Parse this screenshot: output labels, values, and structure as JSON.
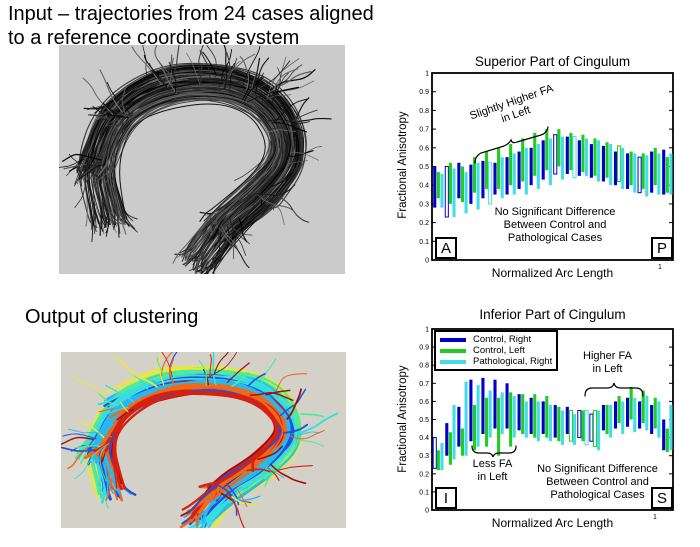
{
  "header": {
    "title": "Input – trajectories from 24 cases aligned\nto a reference coordinate system"
  },
  "clustering": {
    "label": "Output of clustering"
  },
  "images": {
    "input_fibers": {
      "name": "input-fiber-tracts",
      "background": "#cbcbcb"
    },
    "clustered_fibers": {
      "name": "clustered-fiber-tracts",
      "background": "#d4d2c8",
      "cluster_palette": [
        "#a01010",
        "#d82010",
        "#f06818",
        "#28b8ee",
        "#2050e0",
        "#38dede",
        "#52e89e",
        "#e8e83c"
      ]
    }
  },
  "chart_data": [
    {
      "type": "bar",
      "title": "Superior Part of Cingulum",
      "ylabel": "Fractional Anisotropy",
      "xlabel": "Normalized Arc Length",
      "ylim": [
        0,
        1
      ],
      "ytick_labels": [
        "0",
        "0.1",
        "0.2",
        "0.3",
        "0.4",
        "0.5",
        "0.6",
        "0.7",
        "0.8",
        "0.9",
        "1"
      ],
      "xtick_label": "1",
      "corner_left": "A",
      "corner_right": "P",
      "grid": false,
      "legend_shown": false,
      "series": [
        {
          "name": "Control, Right",
          "color": "#0000CC"
        },
        {
          "name": "Control, Left",
          "color": "#22CC22"
        },
        {
          "name": "Pathological, Right",
          "color": "#44DDE6"
        }
      ],
      "groups_note": "each group = [low,high,(0=hollow)] FA range for Control-Right, Control-Left, Pathological-Right",
      "groups": [
        [
          [
            0.28,
            0.5
          ],
          [
            0.33,
            0.47
          ],
          [
            0.28,
            0.46
          ]
        ],
        [
          [
            0.23,
            0.5,
            0
          ],
          [
            0.3,
            0.52
          ],
          [
            0.23,
            0.49
          ]
        ],
        [
          [
            0.33,
            0.52
          ],
          [
            0.31,
            0.5
          ],
          [
            0.25,
            0.47
          ]
        ],
        [
          [
            0.3,
            0.51
          ],
          [
            0.36,
            0.55
          ],
          [
            0.27,
            0.52
          ]
        ],
        [
          [
            0.33,
            0.53
          ],
          [
            0.38,
            0.58
          ],
          [
            0.3,
            0.52,
            0
          ]
        ],
        [
          [
            0.35,
            0.52
          ],
          [
            0.38,
            0.6
          ],
          [
            0.33,
            0.55
          ]
        ],
        [
          [
            0.35,
            0.55
          ],
          [
            0.4,
            0.62
          ],
          [
            0.35,
            0.57
          ]
        ],
        [
          [
            0.38,
            0.58
          ],
          [
            0.42,
            0.65
          ],
          [
            0.35,
            0.6
          ]
        ],
        [
          [
            0.4,
            0.6
          ],
          [
            0.45,
            0.68
          ],
          [
            0.38,
            0.62
          ]
        ],
        [
          [
            0.43,
            0.64
          ],
          [
            0.48,
            0.7
          ],
          [
            0.4,
            0.65
          ]
        ],
        [
          [
            0.46,
            0.67,
            0
          ],
          [
            0.5,
            0.7
          ],
          [
            0.43,
            0.66
          ]
        ],
        [
          [
            0.46,
            0.66
          ],
          [
            0.48,
            0.68
          ],
          [
            0.44,
            0.66,
            0
          ]
        ],
        [
          [
            0.45,
            0.64
          ],
          [
            0.47,
            0.67
          ],
          [
            0.45,
            0.65
          ]
        ],
        [
          [
            0.44,
            0.62
          ],
          [
            0.45,
            0.65
          ],
          [
            0.42,
            0.64
          ]
        ],
        [
          [
            0.42,
            0.61
          ],
          [
            0.44,
            0.63
          ],
          [
            0.4,
            0.62
          ]
        ],
        [
          [
            0.4,
            0.58
          ],
          [
            0.42,
            0.61,
            0
          ],
          [
            0.38,
            0.6
          ]
        ],
        [
          [
            0.38,
            0.57
          ],
          [
            0.4,
            0.58
          ],
          [
            0.36,
            0.57
          ]
        ],
        [
          [
            0.36,
            0.55,
            0
          ],
          [
            0.38,
            0.57
          ],
          [
            0.34,
            0.56
          ]
        ],
        [
          [
            0.36,
            0.58
          ],
          [
            0.4,
            0.6
          ],
          [
            0.35,
            0.57
          ]
        ],
        [
          [
            0.35,
            0.59
          ],
          [
            0.36,
            0.55
          ],
          [
            0.35,
            0.57
          ]
        ]
      ],
      "annotations": {
        "slight": "Slightly Higher FA\nin Left",
        "nosig": "No Significant Difference\nBetween Control and\nPathological Cases"
      }
    },
    {
      "type": "bar",
      "title": "Inferior Part of Cingulum",
      "ylabel": "Fractional Anisotropy",
      "xlabel": "Normalized Arc Length",
      "ylim": [
        0,
        1
      ],
      "ytick_labels": [
        "0",
        "0.1",
        "0.2",
        "0.3",
        "0.4",
        "0.5",
        "0.6",
        "0.7",
        "0.8",
        "0.9",
        "1"
      ],
      "xtick_label": "1",
      "corner_left": "I",
      "corner_right": "S",
      "grid": false,
      "legend_shown": true,
      "series": [
        {
          "name": "Control, Right",
          "color": "#0000CC"
        },
        {
          "name": "Control, Left",
          "color": "#22CC22"
        },
        {
          "name": "Pathological, Right",
          "color": "#44DDE6"
        }
      ],
      "groups": [
        [
          [
            0.23,
            0.4,
            0
          ],
          [
            0.22,
            0.33
          ],
          [
            0.22,
            0.37
          ]
        ],
        [
          [
            0.3,
            0.48
          ],
          [
            0.25,
            0.43
          ],
          [
            0.28,
            0.58
          ]
        ],
        [
          [
            0.35,
            0.57
          ],
          [
            0.3,
            0.45
          ],
          [
            0.3,
            0.71
          ]
        ],
        [
          [
            0.38,
            0.72
          ],
          [
            0.33,
            0.58
          ],
          [
            0.35,
            0.69
          ]
        ],
        [
          [
            0.42,
            0.73
          ],
          [
            0.35,
            0.62
          ],
          [
            0.4,
            0.66
          ]
        ],
        [
          [
            0.45,
            0.72
          ],
          [
            0.3,
            0.62
          ],
          [
            0.42,
            0.65
          ]
        ],
        [
          [
            0.45,
            0.7
          ],
          [
            0.35,
            0.65
          ],
          [
            0.4,
            0.63
          ]
        ],
        [
          [
            0.44,
            0.64
          ],
          [
            0.42,
            0.64
          ],
          [
            0.4,
            0.6
          ]
        ],
        [
          [
            0.42,
            0.62
          ],
          [
            0.4,
            0.64
          ],
          [
            0.38,
            0.6
          ]
        ],
        [
          [
            0.42,
            0.6
          ],
          [
            0.4,
            0.63
          ],
          [
            0.38,
            0.58
          ]
        ],
        [
          [
            0.4,
            0.58
          ],
          [
            0.38,
            0.57
          ],
          [
            0.36,
            0.55
          ]
        ],
        [
          [
            0.42,
            0.57
          ],
          [
            0.38,
            0.55,
            0
          ],
          [
            0.36,
            0.53
          ]
        ],
        [
          [
            0.4,
            0.55,
            0
          ],
          [
            0.38,
            0.55
          ],
          [
            0.36,
            0.55,
            0
          ]
        ],
        [
          [
            0.38,
            0.53,
            0
          ],
          [
            0.35,
            0.55,
            0
          ],
          [
            0.33,
            0.55
          ]
        ],
        [
          [
            0.44,
            0.58
          ],
          [
            0.42,
            0.58
          ],
          [
            0.4,
            0.58
          ]
        ],
        [
          [
            0.45,
            0.6
          ],
          [
            0.48,
            0.63
          ],
          [
            0.42,
            0.6
          ]
        ],
        [
          [
            0.46,
            0.62
          ],
          [
            0.5,
            0.68
          ],
          [
            0.43,
            0.62
          ]
        ],
        [
          [
            0.45,
            0.6
          ],
          [
            0.48,
            0.66
          ],
          [
            0.44,
            0.63
          ]
        ],
        [
          [
            0.42,
            0.58
          ],
          [
            0.45,
            0.62
          ],
          [
            0.4,
            0.6
          ]
        ],
        [
          [
            0.33,
            0.5
          ],
          [
            0.32,
            0.45
          ],
          [
            0.33,
            0.58
          ]
        ]
      ],
      "annotations": {
        "higher": "Higher FA\nin Left",
        "less": "Less FA\nin Left",
        "nosig": "No Significant Difference\nBetween Control and\nPathological Cases"
      }
    }
  ]
}
